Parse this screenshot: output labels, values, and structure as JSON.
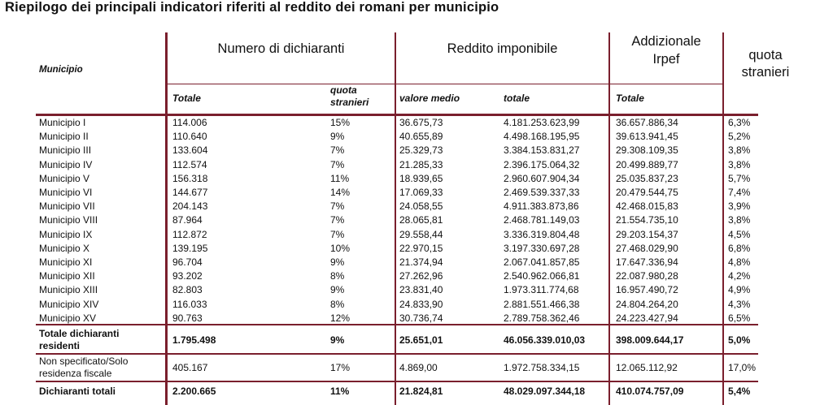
{
  "title": "Riepilogo dei principali indicatori riferiti al reddito dei romani per municipio",
  "headers": {
    "municipio": "Municipio",
    "numero_dichiaranti": "Numero di dichiaranti",
    "reddito_imponibile": "Reddito imponibile",
    "addizionale_line1": "Addizionale",
    "addizionale_line2": "Irpef",
    "quota_stranieri_line1": "quota",
    "quota_stranieri_line2": "stranieri",
    "sub_totale": "Totale",
    "sub_quota_line1": "quota",
    "sub_quota_line2": "stranieri",
    "sub_valore_medio": "valore medio",
    "sub_totale_reddito": "totale",
    "sub_totale_addizionale": "Totale"
  },
  "rows": [
    [
      "Municipio I",
      "114.006",
      "15%",
      "36.675,73",
      "4.181.253.623,99",
      "36.657.886,34",
      "6,3%"
    ],
    [
      "Municipio II",
      "110.640",
      "9%",
      "40.655,89",
      "4.498.168.195,95",
      "39.613.941,45",
      "5,2%"
    ],
    [
      "Municipio III",
      "133.604",
      "7%",
      "25.329,73",
      "3.384.153.831,27",
      "29.308.109,35",
      "3,8%"
    ],
    [
      "Municipio IV",
      "112.574",
      "7%",
      "21.285,33",
      "2.396.175.064,32",
      "20.499.889,77",
      "3,8%"
    ],
    [
      "Municipio V",
      "156.318",
      "11%",
      "18.939,65",
      "2.960.607.904,34",
      "25.035.837,23",
      "5,7%"
    ],
    [
      "Municipio VI",
      "144.677",
      "14%",
      "17.069,33",
      "2.469.539.337,33",
      "20.479.544,75",
      "7,4%"
    ],
    [
      "Municipio VII",
      "204.143",
      "7%",
      "24.058,55",
      "4.911.383.873,86",
      "42.468.015,83",
      "3,9%"
    ],
    [
      "Municipio VIII",
      "87.964",
      "7%",
      "28.065,81",
      "2.468.781.149,03",
      "21.554.735,10",
      "3,8%"
    ],
    [
      "Municipio IX",
      "112.872",
      "7%",
      "29.558,44",
      "3.336.319.804,48",
      "29.203.154,37",
      "4,5%"
    ],
    [
      "Municipio X",
      "139.195",
      "10%",
      "22.970,15",
      "3.197.330.697,28",
      "27.468.029,90",
      "6,8%"
    ],
    [
      "Municipio XI",
      "96.704",
      "9%",
      "21.374,94",
      "2.067.041.857,85",
      "17.647.336,94",
      "4,8%"
    ],
    [
      "Municipio XII",
      "93.202",
      "8%",
      "27.262,96",
      "2.540.962.066,81",
      "22.087.980,28",
      "4,2%"
    ],
    [
      "Municipio XIII",
      "82.803",
      "9%",
      "23.831,40",
      "1.973.311.774,68",
      "16.957.490,72",
      "4,9%"
    ],
    [
      "Municipio XIV",
      "116.033",
      "8%",
      "24.833,90",
      "2.881.551.466,38",
      "24.804.264,20",
      "4,3%"
    ],
    [
      "Municipio XV",
      "90.763",
      "12%",
      "30.736,74",
      "2.789.758.362,46",
      "24.223.427,94",
      "6,5%"
    ]
  ],
  "totale_residenti": {
    "label_line1": "Totale dichiaranti",
    "label_line2": "residenti",
    "values": [
      "1.795.498",
      "9%",
      "25.651,01",
      "46.056.339.010,03",
      "398.009.644,17",
      "5,0%"
    ]
  },
  "non_specificato": {
    "label_line1": "Non specificato/Solo",
    "label_line2": "residenza fiscale",
    "values": [
      "405.167",
      "17%",
      "4.869,00",
      "1.972.758.334,15",
      "12.065.112,92",
      "17,0%"
    ]
  },
  "dichiaranti_totali": {
    "label": "Dichiaranti totali",
    "values": [
      "2.200.665",
      "11%",
      "21.824,81",
      "48.029.097.344,18",
      "410.074.757,09",
      "5,4%"
    ]
  },
  "colors": {
    "rule": "#7a1f2d"
  }
}
